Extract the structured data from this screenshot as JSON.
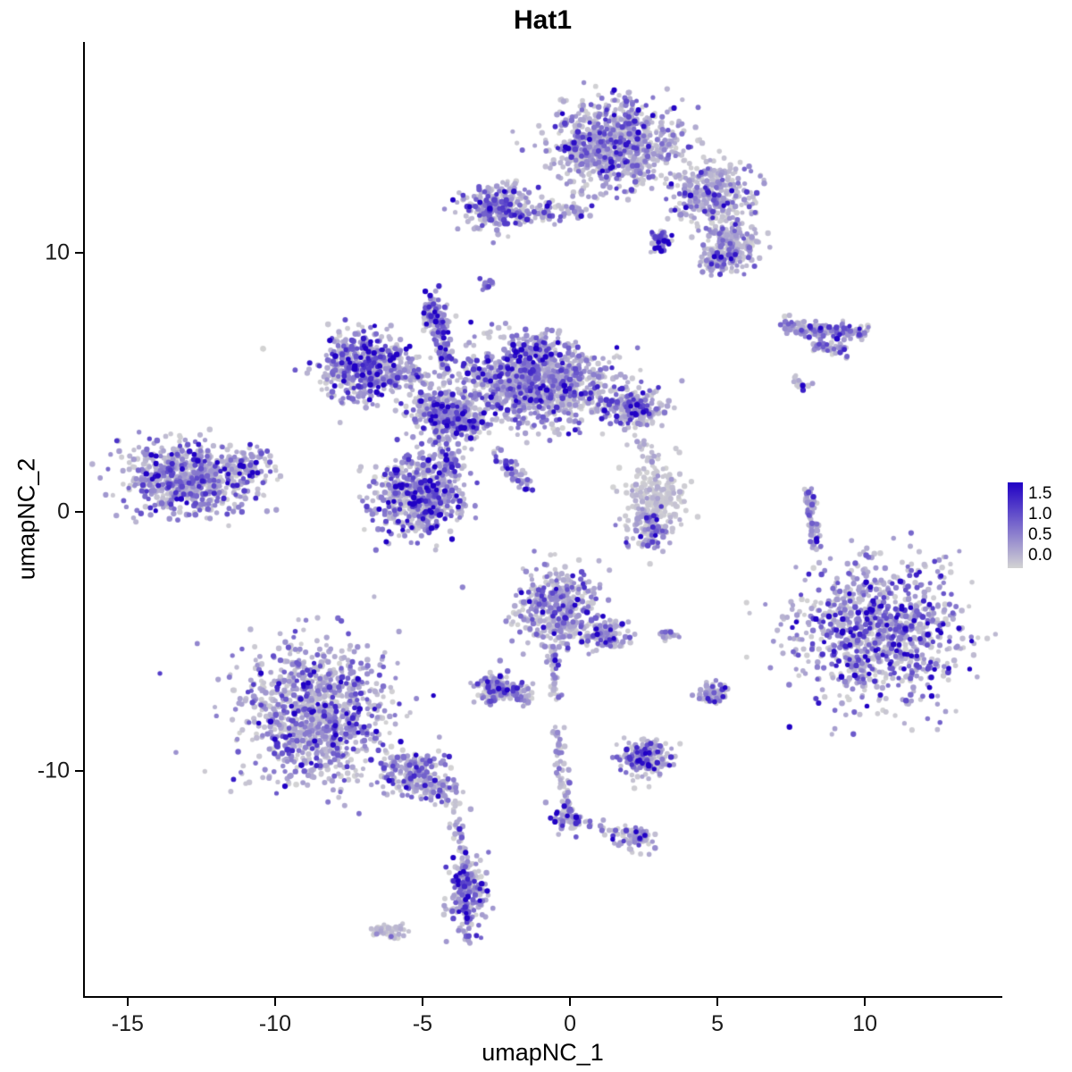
{
  "chart_data": {
    "type": "scatter",
    "title": "Hat1",
    "xlabel": "umapNC_1",
    "ylabel": "umapNC_2",
    "x_ticks": [
      -15,
      -10,
      -5,
      0,
      5,
      10
    ],
    "x_tick_labels": [
      "-15",
      "-10",
      "-5",
      "0",
      "5",
      "10"
    ],
    "y_ticks": [
      -10,
      0,
      10
    ],
    "y_tick_labels": [
      "-10",
      "0",
      "10"
    ],
    "xlim": [
      -16.45,
      14.6
    ],
    "ylim": [
      -18.7,
      18.14
    ],
    "grid": false,
    "legend": {
      "position": "right",
      "labels": [
        "1.5",
        "1.0",
        "0.5",
        "0.0"
      ],
      "values": [
        1.5,
        1.0,
        0.5,
        0.0
      ],
      "low_color": "#D3D3D3",
      "high_color": "#2000C5",
      "top_value": 1.78,
      "bottom_value": -0.3
    },
    "point_color_scale": {
      "low": "#D3D3D3",
      "high": "#2000C5",
      "max": 1.55
    },
    "seed": 42,
    "clusters": [
      {
        "type": "gauss",
        "x": 1.5,
        "y": 14.2,
        "sx": 1.05,
        "sy": 0.85,
        "n": 850,
        "e": 0.35
      },
      {
        "type": "gauss",
        "x": 4.8,
        "y": 12.3,
        "sx": 0.7,
        "sy": 0.55,
        "n": 330,
        "e": 0.35
      },
      {
        "type": "gauss",
        "x": 5.5,
        "y": 10.4,
        "sx": 0.45,
        "sy": 0.4,
        "n": 150,
        "e": 0.3
      },
      {
        "type": "gauss",
        "x": 3.1,
        "y": 10.5,
        "sx": 0.18,
        "sy": 0.22,
        "n": 45,
        "e": 0.8
      },
      {
        "type": "gauss",
        "x": 5.1,
        "y": 9.7,
        "sx": 0.4,
        "sy": 0.3,
        "n": 110,
        "e": 0.45
      },
      {
        "type": "gauss",
        "x": -2.5,
        "y": 11.8,
        "sx": 0.55,
        "sy": 0.45,
        "n": 260,
        "e": 0.45
      },
      {
        "type": "gauss",
        "x": -2.8,
        "y": 8.8,
        "sx": 0.12,
        "sy": 0.12,
        "n": 14,
        "e": 0.6
      },
      {
        "type": "gauss",
        "x": -2.6,
        "y": 6.8,
        "sx": 0.25,
        "sy": 0.3,
        "n": 10,
        "e": 0.2
      },
      {
        "type": "gauss",
        "x": 7.8,
        "y": 4.9,
        "sx": 0.2,
        "sy": 0.15,
        "n": 12,
        "e": 0.3
      },
      {
        "type": "gauss",
        "x": -6.9,
        "y": 5.6,
        "sx": 0.75,
        "sy": 0.65,
        "n": 520,
        "e": 0.5
      },
      {
        "type": "gauss",
        "x": -4.6,
        "y": 7.7,
        "sx": 0.22,
        "sy": 0.3,
        "n": 80,
        "e": 0.6
      },
      {
        "type": "gauss",
        "x": -1.2,
        "y": 4.9,
        "sx": 1.45,
        "sy": 0.75,
        "n": 1050,
        "e": 0.4
      },
      {
        "type": "gauss",
        "x": -1.3,
        "y": 6.0,
        "sx": 0.45,
        "sy": 0.4,
        "n": 150,
        "e": 0.5
      },
      {
        "type": "gauss",
        "x": 2.2,
        "y": 4.0,
        "sx": 0.5,
        "sy": 0.35,
        "n": 190,
        "e": 0.4
      },
      {
        "type": "gauss",
        "x": -4.1,
        "y": 3.6,
        "sx": 0.5,
        "sy": 0.4,
        "n": 280,
        "e": 0.5
      },
      {
        "type": "gauss",
        "x": -5.1,
        "y": 0.6,
        "sx": 0.78,
        "sy": 0.78,
        "n": 600,
        "e": 0.5
      },
      {
        "type": "gauss",
        "x": -13.0,
        "y": 1.3,
        "sx": 1.05,
        "sy": 0.65,
        "n": 680,
        "e": 0.45
      },
      {
        "type": "gauss",
        "x": -11.0,
        "y": 1.8,
        "sx": 0.45,
        "sy": 0.35,
        "n": 90,
        "e": 0.55
      },
      {
        "type": "gauss",
        "x": -10.4,
        "y": 6.3,
        "sx": 0.03,
        "sy": 0.03,
        "n": 2,
        "e": 0.0
      },
      {
        "type": "gauss",
        "x": 2.95,
        "y": 0.6,
        "sx": 0.5,
        "sy": 0.6,
        "n": 190,
        "e": 0.1
      },
      {
        "type": "gauss",
        "x": 2.7,
        "y": -0.6,
        "sx": 0.35,
        "sy": 0.45,
        "n": 130,
        "e": 0.4
      },
      {
        "type": "gauss",
        "x": 10.5,
        "y": -4.6,
        "sx": 1.45,
        "sy": 1.3,
        "n": 980,
        "e": 0.5
      },
      {
        "type": "gauss",
        "x": 11.3,
        "y": -3.7,
        "sx": 0.05,
        "sy": 0.05,
        "n": 2,
        "e": 1.7
      },
      {
        "type": "gauss",
        "x": -8.6,
        "y": -7.8,
        "sx": 1.25,
        "sy": 1.3,
        "n": 1050,
        "e": 0.4
      },
      {
        "type": "gauss",
        "x": -5.4,
        "y": -10.1,
        "sx": 0.6,
        "sy": 0.45,
        "n": 190,
        "e": 0.4
      },
      {
        "type": "gauss",
        "x": -4.5,
        "y": -10.7,
        "sx": 0.35,
        "sy": 0.3,
        "n": 70,
        "e": 0.35
      },
      {
        "type": "gauss",
        "x": -0.4,
        "y": -3.7,
        "sx": 0.7,
        "sy": 0.8,
        "n": 420,
        "e": 0.4
      },
      {
        "type": "gauss",
        "x": 1.2,
        "y": -4.8,
        "sx": 0.38,
        "sy": 0.28,
        "n": 110,
        "e": 0.35
      },
      {
        "type": "gauss",
        "x": -2.5,
        "y": -6.8,
        "sx": 0.3,
        "sy": 0.3,
        "n": 130,
        "e": 0.5
      },
      {
        "type": "gauss",
        "x": -1.7,
        "y": -7.0,
        "sx": 0.2,
        "sy": 0.2,
        "n": 40,
        "e": 0.4
      },
      {
        "type": "gauss",
        "x": 3.3,
        "y": -4.8,
        "sx": 0.14,
        "sy": 0.12,
        "n": 22,
        "e": 0.3
      },
      {
        "type": "gauss",
        "x": 4.9,
        "y": -7.0,
        "sx": 0.26,
        "sy": 0.22,
        "n": 70,
        "e": 0.45
      },
      {
        "type": "gauss",
        "x": 2.5,
        "y": -9.5,
        "sx": 0.42,
        "sy": 0.38,
        "n": 200,
        "e": 0.45
      },
      {
        "type": "gauss",
        "x": -0.1,
        "y": -11.9,
        "sx": 0.25,
        "sy": 0.25,
        "n": 60,
        "e": 0.5
      },
      {
        "type": "gauss",
        "x": 2.3,
        "y": -12.6,
        "sx": 0.3,
        "sy": 0.25,
        "n": 70,
        "e": 0.5
      },
      {
        "type": "gauss",
        "x": -3.5,
        "y": -14.7,
        "sx": 0.3,
        "sy": 0.75,
        "n": 210,
        "e": 0.5
      },
      {
        "type": "gauss",
        "x": -3.5,
        "y": -14.9,
        "sx": 0.04,
        "sy": 0.04,
        "n": 2,
        "e": 1.7
      },
      {
        "type": "gauss",
        "x": -6.2,
        "y": -16.2,
        "sx": 0.26,
        "sy": 0.16,
        "n": 45,
        "e": 0.15
      },
      {
        "type": "line",
        "x1": -1.8,
        "y1": 11.5,
        "x2": 0.6,
        "y2": 11.7,
        "jit": 0.22,
        "n": 70,
        "e": 0.4
      },
      {
        "type": "line",
        "x1": 7.2,
        "y1": 7.15,
        "x2": 10.0,
        "y2": 6.95,
        "jit": 0.16,
        "n": 150,
        "e": 0.5
      },
      {
        "type": "line",
        "x1": 8.3,
        "y1": 6.4,
        "x2": 9.4,
        "y2": 6.2,
        "jit": 0.12,
        "n": 50,
        "e": 0.4
      },
      {
        "type": "line",
        "x1": 8.1,
        "y1": 0.9,
        "x2": 8.3,
        "y2": -1.4,
        "jit": 0.1,
        "n": 80,
        "e": 0.4
      },
      {
        "type": "line",
        "x1": -4.5,
        "y1": 7.4,
        "x2": -4.2,
        "y2": 5.4,
        "jit": 0.16,
        "n": 90,
        "e": 0.5
      },
      {
        "type": "line",
        "x1": -5.3,
        "y1": 4.3,
        "x2": -3.1,
        "y2": 3.2,
        "jit": 0.28,
        "n": 130,
        "e": 0.5
      },
      {
        "type": "line",
        "x1": -2.5,
        "y1": 2.3,
        "x2": -1.4,
        "y2": 0.9,
        "jit": 0.14,
        "n": 55,
        "e": 0.5
      },
      {
        "type": "line",
        "x1": -4.4,
        "y1": 2.7,
        "x2": -4.0,
        "y2": 1.6,
        "jit": 0.2,
        "n": 60,
        "e": 0.5
      },
      {
        "type": "line",
        "x1": 2.4,
        "y1": 2.8,
        "x2": 2.9,
        "y2": 1.6,
        "jit": 0.12,
        "n": 16,
        "e": 0.2
      },
      {
        "type": "line",
        "x1": -5.8,
        "y1": 5.5,
        "x2": -4.9,
        "y2": 5.1,
        "jit": 0.25,
        "n": 60,
        "e": 0.45
      },
      {
        "type": "line",
        "x1": -0.6,
        "y1": -5.3,
        "x2": -0.45,
        "y2": -7.5,
        "jit": 0.1,
        "n": 40,
        "e": 0.4
      },
      {
        "type": "line",
        "x1": -0.4,
        "y1": -8.3,
        "x2": -0.15,
        "y2": -11.5,
        "jit": 0.12,
        "n": 55,
        "e": 0.4
      },
      {
        "type": "line",
        "x1": 0.15,
        "y1": -12.0,
        "x2": 2.1,
        "y2": -12.55,
        "jit": 0.12,
        "n": 30,
        "e": 0.35
      },
      {
        "type": "line",
        "x1": -4.0,
        "y1": -11.2,
        "x2": -3.6,
        "y2": -13.7,
        "jit": 0.12,
        "n": 38,
        "e": 0.35
      }
    ]
  }
}
